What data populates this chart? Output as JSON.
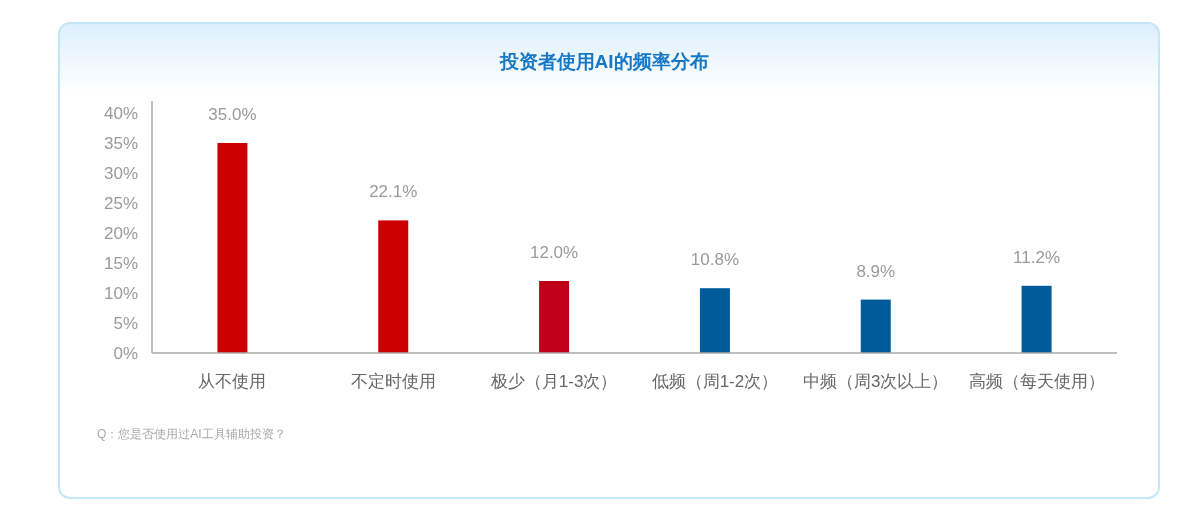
{
  "chart_data": {
    "type": "bar",
    "title": "投资者使用AI的频率分布",
    "categories": [
      "从不使用",
      "不定时使用",
      "极少（月1-3次）",
      "低频（周1-2次）",
      "中频（周3次以上）",
      "高频（每天使用）"
    ],
    "values": [
      35.0,
      22.1,
      12.0,
      10.8,
      8.9,
      11.2
    ],
    "value_labels": [
      "35.0%",
      "22.1%",
      "12.0%",
      "10.8%",
      "8.9%",
      "11.2%"
    ],
    "colors": [
      "#cc0000",
      "#cc0000",
      "#c00018",
      "#005b9a",
      "#005b9a",
      "#005b9a"
    ],
    "ylim": [
      0,
      42
    ],
    "yticks": [
      {
        "value": 0,
        "label": "0%"
      },
      {
        "value": 5,
        "label": "5%"
      },
      {
        "value": 10,
        "label": "10%"
      },
      {
        "value": 15,
        "label": "15%"
      },
      {
        "value": 20,
        "label": "20%"
      },
      {
        "value": 25,
        "label": "25%"
      },
      {
        "value": 30,
        "label": "30%"
      },
      {
        "value": 35,
        "label": "35%"
      },
      {
        "value": 40,
        "label": "40%"
      }
    ],
    "annotations": [
      "Q：您是否使用过AI工具辅助投资？"
    ]
  }
}
